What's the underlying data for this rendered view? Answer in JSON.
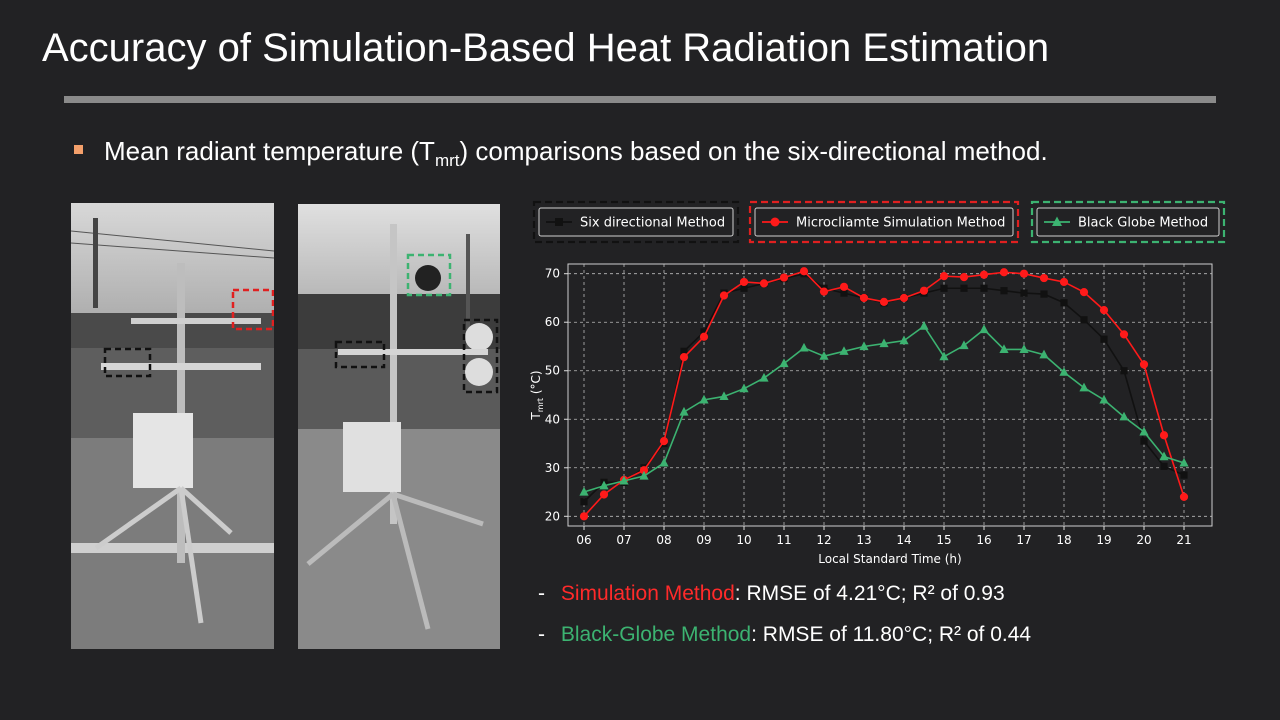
{
  "title": "Accuracy of Simulation-Based Heat Radiation Estimation",
  "bullet": {
    "pre": "Mean radiant temperature (T",
    "sub": "mrt",
    "post": ") comparisons based on the six-directional method."
  },
  "photos": [
    {
      "label": "",
      "highlight_colors": [
        "#e02020",
        "#111111"
      ]
    },
    {
      "label": "",
      "highlight_colors": [
        "#3cb371",
        "#111111",
        "#111111"
      ]
    }
  ],
  "stats": [
    {
      "dash": "-",
      "method": "Simulation Method",
      "color": "#ff2a2a",
      "rest": ": RMSE of 4.21°C; R² of 0.93"
    },
    {
      "dash": "-",
      "method": "Black-Globe Method",
      "color": "#3cb371",
      "rest": ": RMSE of 11.80°C; R² of 0.44"
    }
  ],
  "chart_data": {
    "type": "line",
    "xlabel": "Local Standard Time (h)",
    "ylabel_main": "T",
    "ylabel_sub": "mrt",
    "ylabel_unit": " (°C)",
    "xlim": [
      5.6,
      21.7
    ],
    "ylim": [
      18,
      72
    ],
    "xticks": [
      6,
      7,
      8,
      9,
      10,
      11,
      12,
      13,
      14,
      15,
      16,
      17,
      18,
      19,
      20,
      21
    ],
    "xtick_labels": [
      "06",
      "07",
      "08",
      "09",
      "10",
      "11",
      "12",
      "13",
      "14",
      "15",
      "16",
      "17",
      "18",
      "19",
      "20",
      "21"
    ],
    "yticks": [
      20,
      30,
      40,
      50,
      60,
      70
    ],
    "grid": true,
    "x": [
      6,
      6.5,
      7,
      7.5,
      8,
      8.5,
      9,
      9.5,
      10,
      10.5,
      11,
      11.5,
      12,
      12.5,
      13,
      13.5,
      14,
      14.5,
      15,
      15.5,
      16,
      16.5,
      17,
      17.5,
      18,
      18.5,
      19,
      19.5,
      20,
      20.5,
      21
    ],
    "series": [
      {
        "name": "Six directional Method",
        "color": "#111111",
        "marker": "square",
        "values": [
          23,
          27,
          27,
          30,
          35,
          54,
          58,
          66,
          67,
          68,
          69,
          70,
          67,
          66,
          65,
          64,
          65,
          66,
          67,
          67,
          67,
          66.5,
          66,
          65.8,
          64,
          60.5,
          56.5,
          50,
          35.5,
          30.3,
          28.5
        ]
      },
      {
        "name": "Microcliamte Simulation Method",
        "color": "#ff1a1a",
        "marker": "circle",
        "values": [
          20,
          24.5,
          27.5,
          29.5,
          35.5,
          52.8,
          57,
          65.5,
          68.3,
          68,
          69.2,
          70.5,
          66.3,
          67.3,
          65,
          64.2,
          65,
          66.5,
          69.5,
          69.3,
          69.8,
          70.3,
          70,
          69.1,
          68.3,
          66.2,
          62.5,
          57.5,
          51.3,
          36.7,
          24
        ]
      },
      {
        "name": "Black Globe Method",
        "color": "#3cb371",
        "marker": "triangle",
        "values": [
          25,
          26.3,
          27.3,
          28.3,
          31,
          41.5,
          44,
          44.7,
          46.3,
          48.5,
          51.5,
          54.7,
          53,
          54,
          55,
          55.6,
          56.2,
          59.2,
          52.9,
          55.2,
          58.5,
          54.4,
          54.4,
          53.3,
          49.7,
          46.5,
          44,
          40.5,
          37.4,
          32.3,
          31
        ]
      }
    ],
    "legend_position": "top"
  }
}
